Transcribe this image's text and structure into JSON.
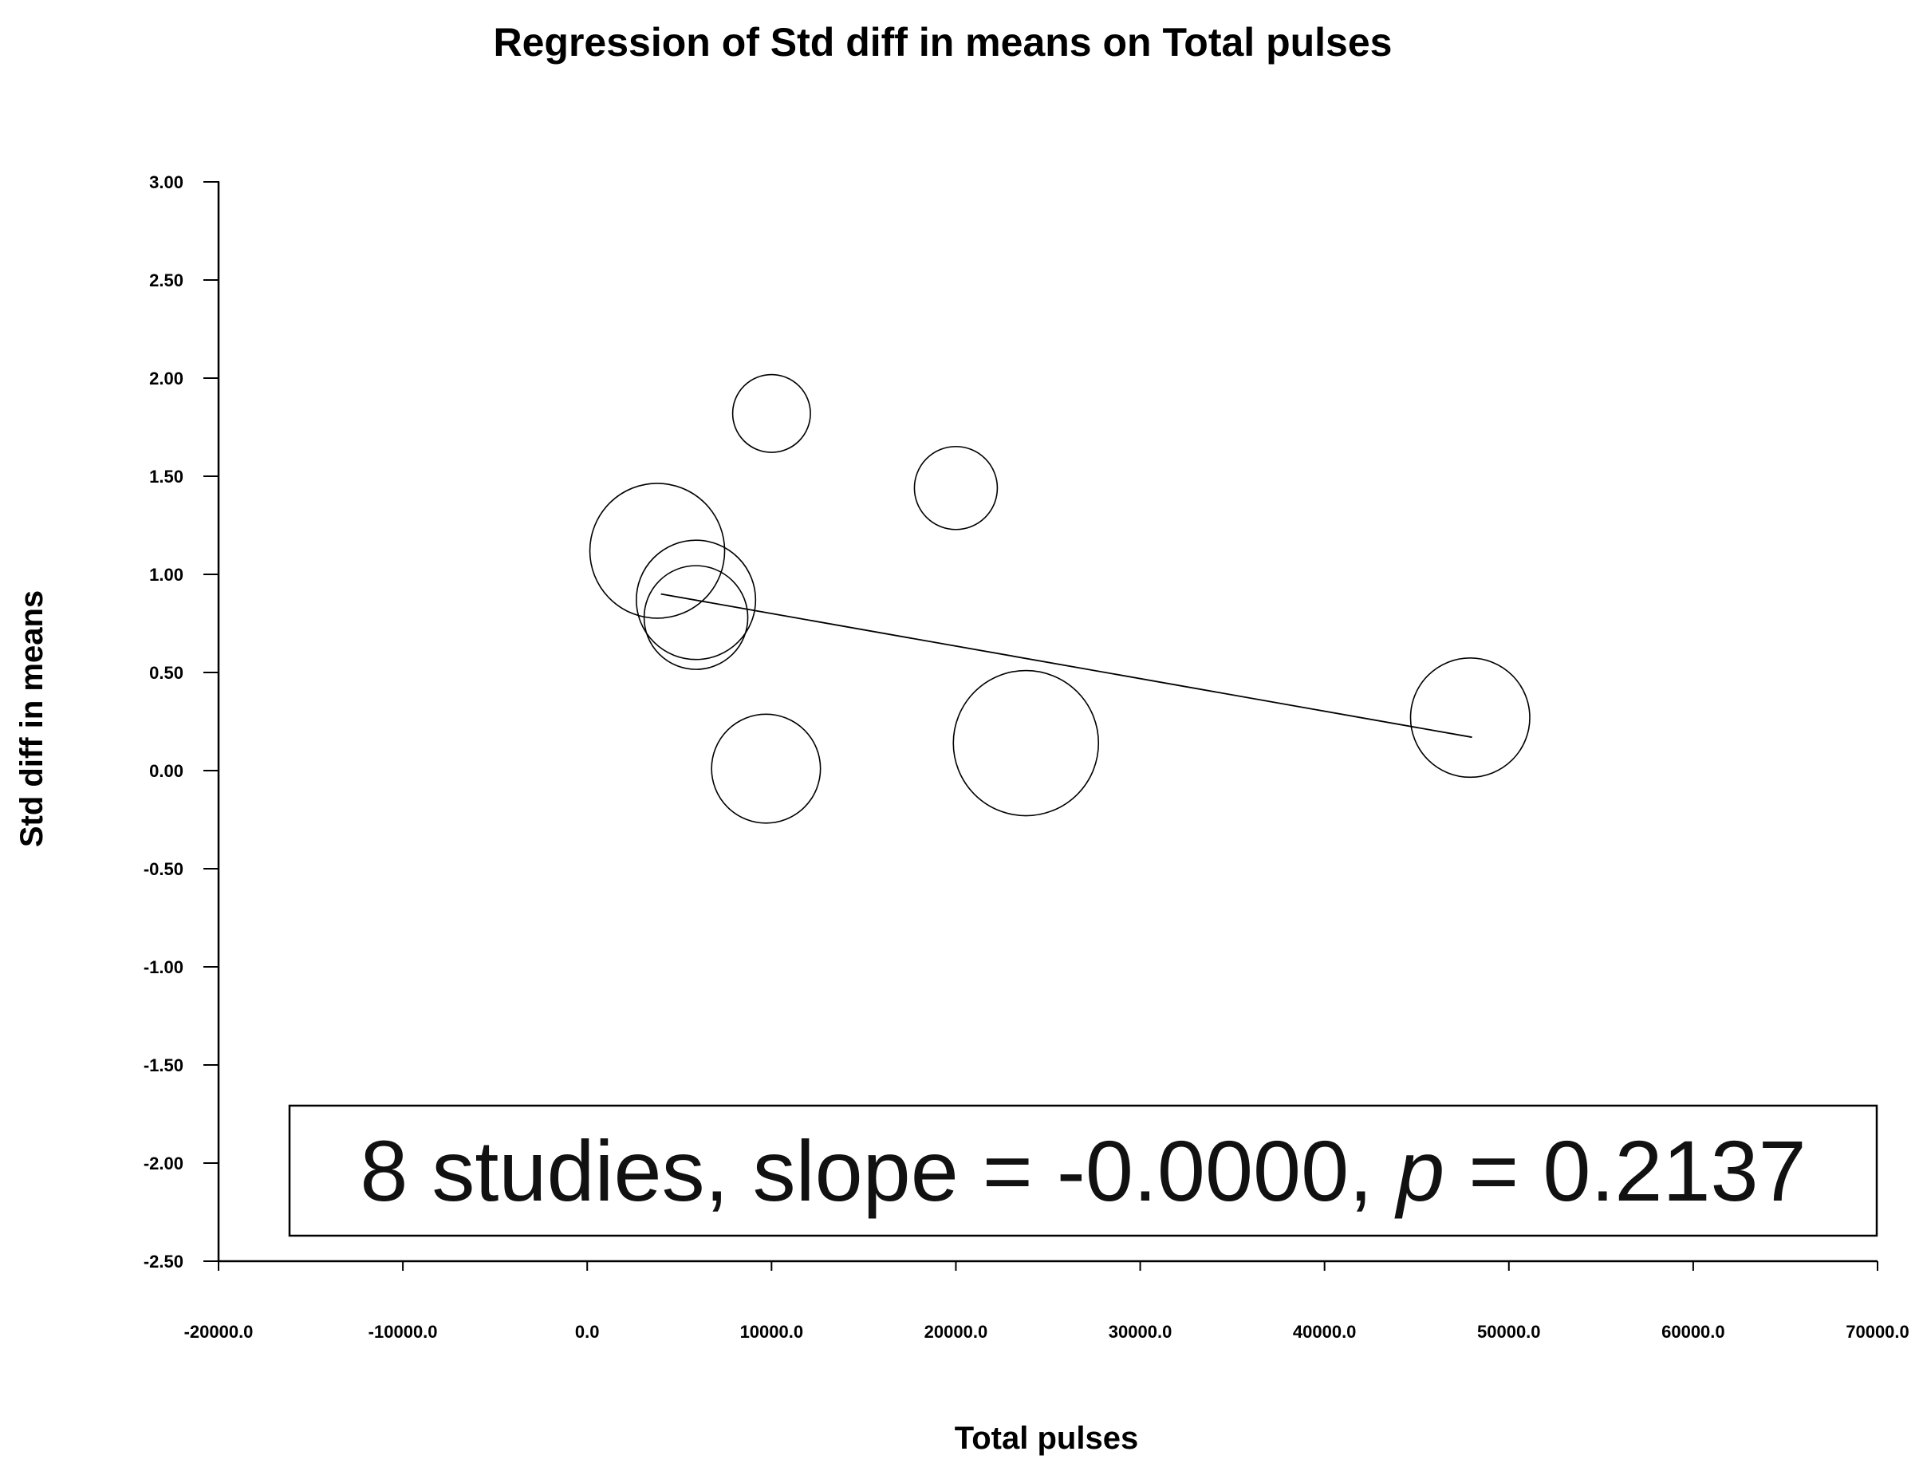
{
  "chart_data": {
    "type": "scatter",
    "title": "Regression of Std diff in means on Total pulses",
    "xlabel": "Total pulses",
    "ylabel": "Std diff in means",
    "xlim": [
      -20000,
      70000
    ],
    "ylim": [
      -2.5,
      3.0
    ],
    "x_ticks": [
      -20000,
      -10000,
      0,
      10000,
      20000,
      30000,
      40000,
      50000,
      60000,
      70000
    ],
    "x_tick_labels": [
      "-20000.0",
      "-10000.0",
      "0.0",
      "10000.0",
      "20000.0",
      "30000.0",
      "40000.0",
      "50000.0",
      "60000.0",
      "70000.0"
    ],
    "y_ticks": [
      3.0,
      2.5,
      2.0,
      1.5,
      1.0,
      0.5,
      0.0,
      -0.5,
      -1.0,
      -1.5,
      -2.0,
      -2.5
    ],
    "y_tick_labels": [
      "3.00",
      "2.50",
      "2.00",
      "1.50",
      "1.00",
      "0.50",
      "0.00",
      "-0.50",
      "-1.00",
      "-1.50",
      "-2.00",
      "-2.50"
    ],
    "grid": false,
    "points": [
      {
        "x": 10000,
        "y": 1.82,
        "weight": 0.75
      },
      {
        "x": 20000,
        "y": 1.44,
        "weight": 0.8
      },
      {
        "x": 3800,
        "y": 1.12,
        "weight": 1.3
      },
      {
        "x": 5900,
        "y": 0.87,
        "weight": 1.15
      },
      {
        "x": 5900,
        "y": 0.78,
        "weight": 1.0
      },
      {
        "x": 9700,
        "y": 0.01,
        "weight": 1.05
      },
      {
        "x": 23800,
        "y": 0.14,
        "weight": 1.4
      },
      {
        "x": 47900,
        "y": 0.27,
        "weight": 1.15
      }
    ],
    "regression_line": {
      "x": [
        4000,
        48000
      ],
      "y": [
        0.9,
        0.17
      ]
    },
    "annotation": {
      "prefix": "8 studies, slope = -0.0000, ",
      "p_symbol": "p",
      "suffix": " = 0.2137"
    }
  }
}
